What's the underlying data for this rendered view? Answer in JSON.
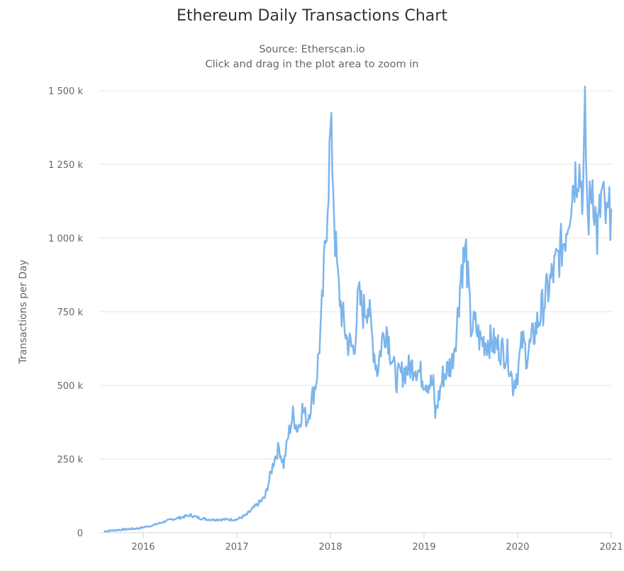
{
  "chart": {
    "title": "Ethereum Daily Transactions Chart",
    "subtitle_source": "Source: Etherscan.io",
    "subtitle_hint": "Click and drag in the plot area to zoom in",
    "ylabel": "Transactions per Day",
    "line_color": "#7cb5ec",
    "grid_color": "#e6e6e6",
    "y_ticks": [
      {
        "label": "1 500 k",
        "value": 1500
      },
      {
        "label": "1 250 k",
        "value": 1250
      },
      {
        "label": "1 000 k",
        "value": 1000
      },
      {
        "label": "750 k",
        "value": 750
      },
      {
        "label": "500 k",
        "value": 500
      },
      {
        "label": "250 k",
        "value": 250
      },
      {
        "label": "0",
        "value": 0
      }
    ],
    "x_ticks": [
      {
        "label": "2016",
        "value": 2016
      },
      {
        "label": "2017",
        "value": 2017
      },
      {
        "label": "2018",
        "value": 2018
      },
      {
        "label": "2019",
        "value": 2019
      },
      {
        "label": "2020",
        "value": 2020
      },
      {
        "label": "2021",
        "value": 2021
      }
    ]
  },
  "chart_data": {
    "type": "line",
    "title": "Ethereum Daily Transactions Chart",
    "subtitle": "Source: Etherscan.io",
    "xlabel": "",
    "ylabel": "Transactions per Day",
    "units": "thousands of transactions",
    "xlim": [
      2015.58,
      2021.02
    ],
    "ylim": [
      0,
      1500
    ],
    "grid": true,
    "legend": "none",
    "series": [
      {
        "name": "Transactions per Day",
        "x": [
          2015.58,
          2015.75,
          2015.95,
          2016.1,
          2016.2,
          2016.3,
          2016.45,
          2016.5,
          2016.6,
          2016.7,
          2016.8,
          2016.9,
          2017.0,
          2017.1,
          2017.2,
          2017.3,
          2017.4,
          2017.45,
          2017.5,
          2017.55,
          2017.6,
          2017.65,
          2017.7,
          2017.75,
          2017.8,
          2017.85,
          2017.9,
          2017.95,
          2018.0,
          2018.02,
          2018.05,
          2018.08,
          2018.12,
          2018.18,
          2018.25,
          2018.3,
          2018.35,
          2018.4,
          2018.45,
          2018.5,
          2018.55,
          2018.6,
          2018.65,
          2018.7,
          2018.8,
          2018.9,
          2019.0,
          2019.1,
          2019.12,
          2019.2,
          2019.3,
          2019.35,
          2019.4,
          2019.45,
          2019.5,
          2019.55,
          2019.6,
          2019.7,
          2019.8,
          2019.9,
          2019.95,
          2020.0,
          2020.05,
          2020.1,
          2020.2,
          2020.3,
          2020.4,
          2020.5,
          2020.55,
          2020.6,
          2020.65,
          2020.7,
          2020.72,
          2020.75,
          2020.8,
          2020.85,
          2020.9,
          2020.95,
          2021.0
        ],
        "values": [
          5,
          10,
          15,
          25,
          35,
          45,
          55,
          60,
          50,
          45,
          45,
          45,
          45,
          60,
          90,
          120,
          250,
          290,
          230,
          330,
          400,
          350,
          420,
          380,
          450,
          520,
          700,
          1000,
          1350,
          1280,
          1000,
          850,
          750,
          650,
          620,
          800,
          750,
          780,
          650,
          550,
          650,
          700,
          600,
          520,
          550,
          570,
          520,
          500,
          400,
          530,
          580,
          700,
          900,
          950,
          700,
          700,
          650,
          650,
          630,
          600,
          500,
          550,
          650,
          600,
          700,
          800,
          900,
          1000,
          1100,
          1200,
          1250,
          1150,
          1400,
          1050,
          1200,
          1000,
          1150,
          1050,
          1100
        ]
      }
    ]
  }
}
